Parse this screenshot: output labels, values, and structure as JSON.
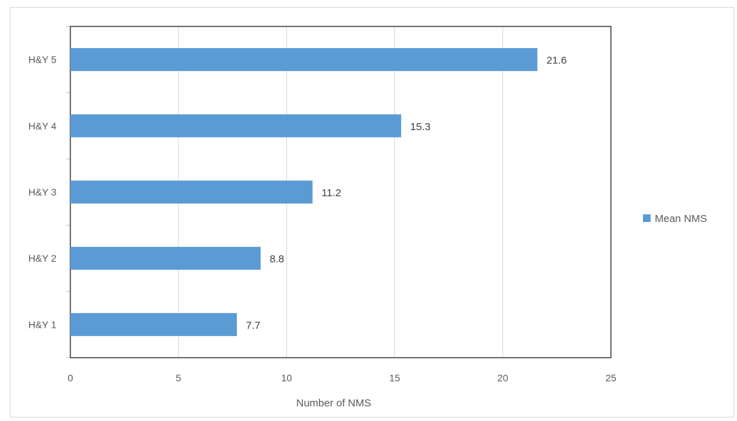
{
  "chart_data": {
    "type": "bar",
    "orientation": "horizontal",
    "categories": [
      "H&Y 1",
      "H&Y 2",
      "H&Y 3",
      "H&Y 4",
      "H&Y 5"
    ],
    "series": [
      {
        "name": "Mean NMS",
        "values": [
          7.7,
          8.8,
          11.2,
          15.3,
          21.6
        ],
        "color": "#5b9bd5"
      }
    ],
    "data_labels": [
      "7.7",
      "8.8",
      "11.2",
      "15.3",
      "21.6"
    ],
    "xlabel": "Number  of NMS",
    "ylabel": "",
    "xlim": [
      0,
      25
    ],
    "x_ticks": [
      "0",
      "5",
      "10",
      "15",
      "20",
      "25"
    ],
    "grid": "vertical",
    "legend_position": "right"
  }
}
